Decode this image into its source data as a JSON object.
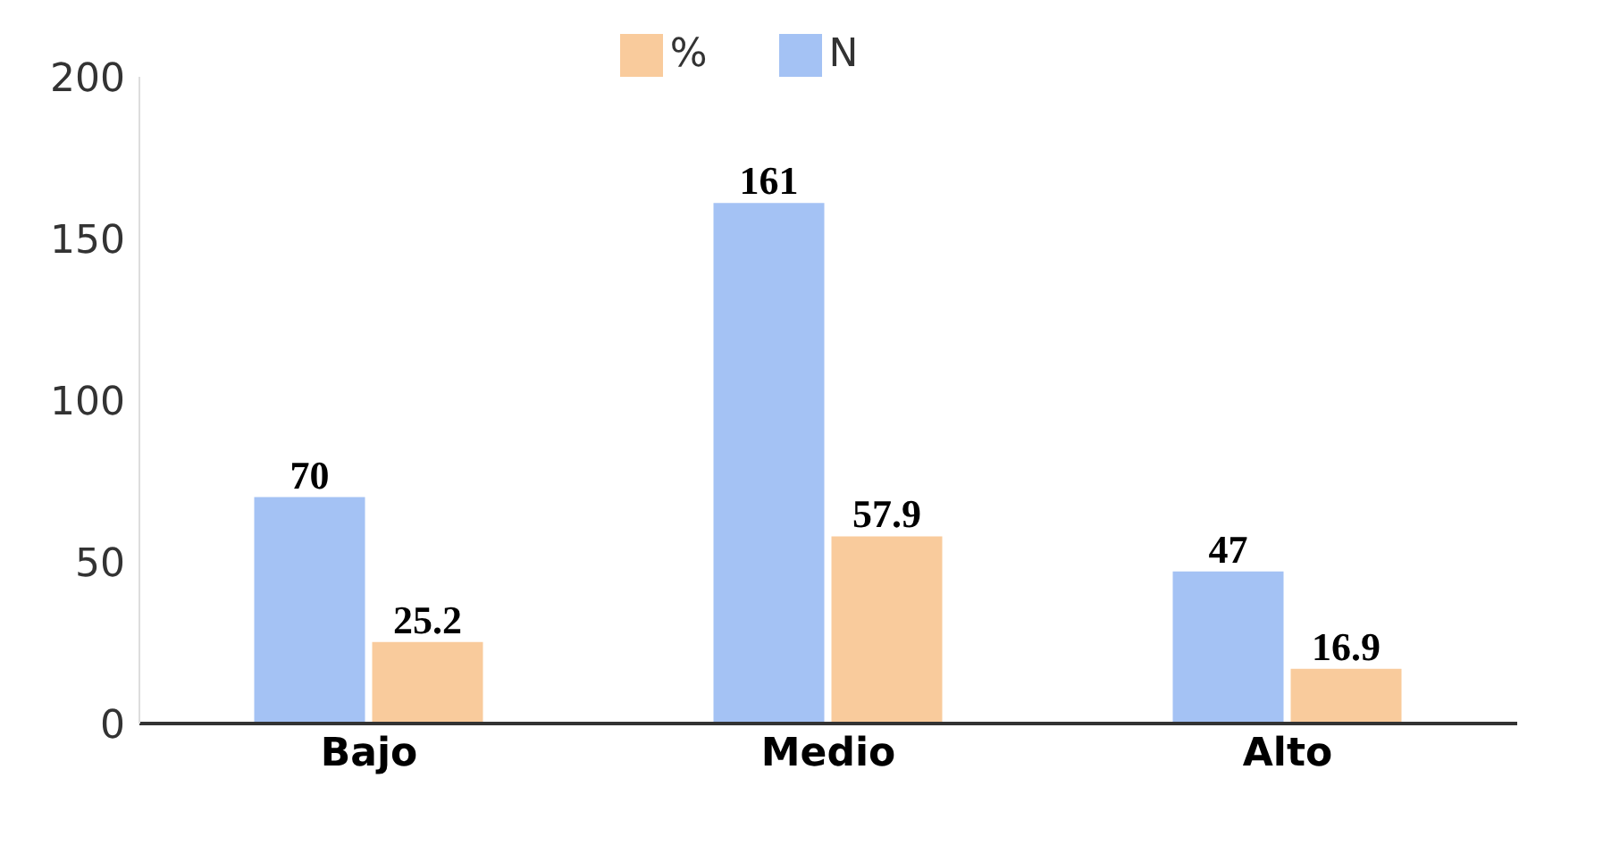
{
  "chart_data": {
    "type": "bar",
    "categories": [
      "Bajo",
      "Medio",
      "Alto"
    ],
    "series": [
      {
        "name": "N",
        "color": "#a4c2f4",
        "values": [
          70,
          161,
          47
        ]
      },
      {
        "name": "%",
        "color": "#f9cb9c",
        "values": [
          25.2,
          57.9,
          16.9
        ]
      }
    ],
    "ylim": [
      0,
      200
    ],
    "yticks": [
      0,
      50,
      100,
      150,
      200
    ],
    "grid": false,
    "legend": "top",
    "data_labels": true
  }
}
